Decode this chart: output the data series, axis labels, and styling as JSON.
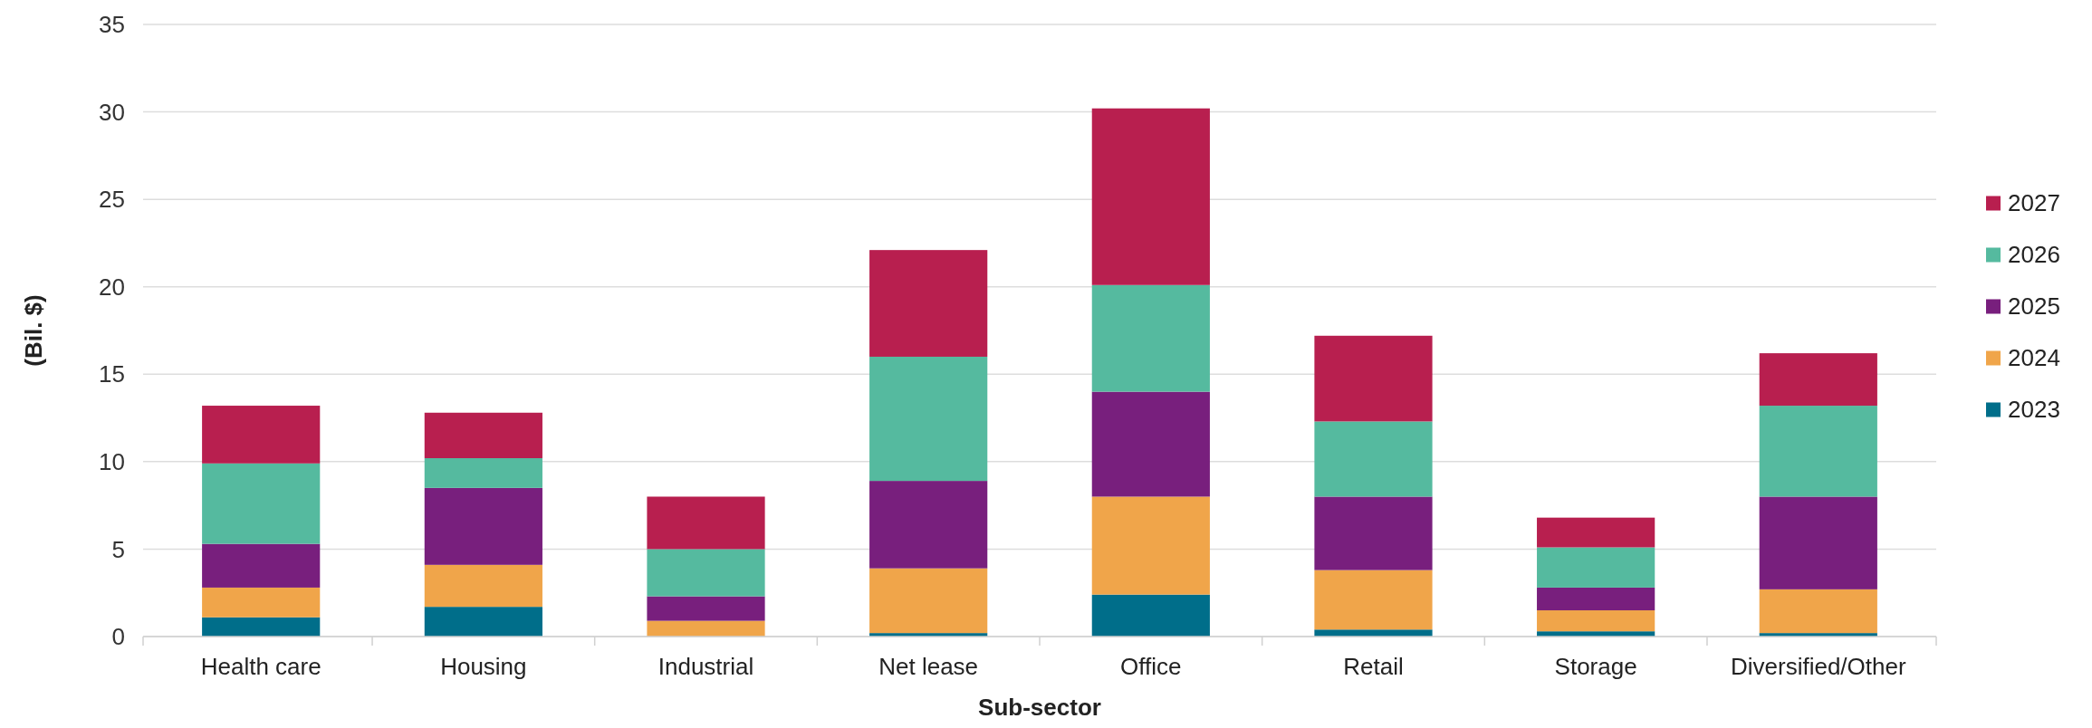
{
  "chart_data": {
    "type": "bar",
    "stacked": true,
    "xlabel": "Sub-sector",
    "ylabel": "(Bil. $)",
    "categories": [
      "Health care",
      "Housing",
      "Industrial",
      "Net lease",
      "Office",
      "Retail",
      "Storage",
      "Diversified/Other"
    ],
    "series": [
      {
        "name": "2023",
        "color": "#006e8a",
        "values": [
          1.1,
          1.7,
          0,
          0.2,
          2.4,
          0.4,
          0.3,
          0.2
        ]
      },
      {
        "name": "2024",
        "color": "#f0a54a",
        "values": [
          1.7,
          2.4,
          0.9,
          3.7,
          5.6,
          3.4,
          1.2,
          2.5
        ]
      },
      {
        "name": "2025",
        "color": "#781f7d",
        "values": [
          2.5,
          4.4,
          1.4,
          5.0,
          6.0,
          4.2,
          1.3,
          5.3
        ]
      },
      {
        "name": "2026",
        "color": "#55ba9f",
        "values": [
          4.6,
          1.7,
          2.7,
          7.1,
          6.1,
          4.3,
          2.3,
          5.2
        ]
      },
      {
        "name": "2027",
        "color": "#b81f4f",
        "values": [
          3.3,
          2.6,
          3.0,
          6.1,
          10.1,
          4.9,
          1.7,
          3.0
        ]
      }
    ],
    "ylim": [
      0,
      35
    ],
    "yticks": [
      0,
      5,
      10,
      15,
      20,
      25,
      30,
      35
    ],
    "grid": "y",
    "legend": "right"
  }
}
